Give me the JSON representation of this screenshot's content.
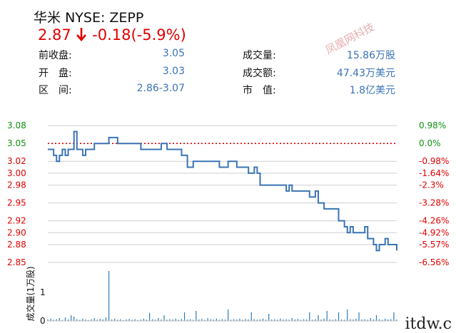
{
  "header": {
    "name": "华米",
    "ticker": "NYSE: ZEPP",
    "price": "2.87",
    "change": "-0.18",
    "change_pct": "(-5.9%)"
  },
  "stats": [
    {
      "label": "前收盘:",
      "value": "3.05"
    },
    {
      "label": "成交量:",
      "value": "15.86万股"
    },
    {
      "label": "开　盘:",
      "value": "3.03"
    },
    {
      "label": "成交额:",
      "value": "47.43万美元"
    },
    {
      "label": "区　间:",
      "value": "2.86-3.07"
    },
    {
      "label": "市　值:",
      "value": "1.8亿美元"
    }
  ],
  "watermark": "凤凰网科技",
  "corner_mark": "itdw.c",
  "colors": {
    "line": "#3a74b4",
    "up": "#109010",
    "down": "#e00000",
    "grid": "#cfcfcf",
    "reference": "#e00000",
    "volume": "#2e7bb8"
  },
  "chart_data": [
    {
      "type": "line",
      "title": "",
      "y_left_ticks": [
        {
          "label": "3.08",
          "value": 3.08,
          "color": "up"
        },
        {
          "label": "3.05",
          "value": 3.05,
          "color": "up"
        },
        {
          "label": "3.02",
          "value": 3.02,
          "color": "down"
        },
        {
          "label": "3.00",
          "value": 3.0,
          "color": "down"
        },
        {
          "label": "2.98",
          "value": 2.98,
          "color": "down"
        },
        {
          "label": "2.95",
          "value": 2.95,
          "color": "down"
        },
        {
          "label": "2.92",
          "value": 2.92,
          "color": "down"
        },
        {
          "label": "2.90",
          "value": 2.9,
          "color": "down"
        },
        {
          "label": "2.88",
          "value": 2.88,
          "color": "down"
        },
        {
          "label": "2.85",
          "value": 2.85,
          "color": "down"
        }
      ],
      "y_right_ticks": [
        {
          "label": "0.98%",
          "value": 3.08,
          "color": "up"
        },
        {
          "label": "0.0%",
          "value": 3.05,
          "color": "up"
        },
        {
          "label": "-0.98%",
          "value": 3.02,
          "color": "down"
        },
        {
          "label": "-1.64%",
          "value": 3.0,
          "color": "down"
        },
        {
          "label": "-2.3%",
          "value": 2.98,
          "color": "down"
        },
        {
          "label": "-3.28%",
          "value": 2.95,
          "color": "down"
        },
        {
          "label": "-4.26%",
          "value": 2.92,
          "color": "down"
        },
        {
          "label": "-4.92%",
          "value": 2.9,
          "color": "down"
        },
        {
          "label": "-5.57%",
          "value": 2.88,
          "color": "down"
        },
        {
          "label": "-6.56%",
          "value": 2.85,
          "color": "down"
        }
      ],
      "ylim": [
        2.85,
        3.085
      ],
      "reference_value": 3.05,
      "grid": true,
      "x": [
        0,
        1,
        2,
        3,
        4,
        5,
        6,
        7,
        8,
        9,
        10,
        11,
        12,
        13,
        14,
        15,
        16,
        17,
        18,
        19,
        20,
        21,
        22,
        23,
        24,
        25,
        26,
        27,
        28,
        29,
        30,
        31,
        32,
        33,
        34,
        35,
        36,
        37,
        38,
        39,
        40,
        41,
        42,
        43,
        44,
        45,
        46,
        47,
        48,
        49,
        50,
        51,
        52,
        53,
        54,
        55,
        56,
        57,
        58,
        59,
        60,
        61,
        62,
        63,
        64,
        65,
        66,
        67,
        68,
        69,
        70,
        71,
        72,
        73,
        74,
        75,
        76,
        77,
        78,
        79,
        80,
        81,
        82,
        83,
        84,
        85,
        86,
        87,
        88,
        89,
        90,
        91,
        92,
        93,
        94,
        95,
        96,
        97,
        98,
        99,
        100,
        101,
        102,
        103,
        104,
        105,
        106,
        107,
        108,
        109,
        110,
        111,
        112,
        113,
        114,
        115,
        116,
        117,
        118,
        119,
        120
      ],
      "values": [
        3.04,
        3.04,
        3.03,
        3.02,
        3.03,
        3.04,
        3.03,
        3.04,
        3.04,
        3.07,
        3.04,
        3.04,
        3.03,
        3.04,
        3.04,
        3.04,
        3.05,
        3.05,
        3.05,
        3.05,
        3.05,
        3.06,
        3.06,
        3.06,
        3.05,
        3.05,
        3.05,
        3.05,
        3.05,
        3.05,
        3.05,
        3.05,
        3.04,
        3.04,
        3.04,
        3.04,
        3.04,
        3.04,
        3.04,
        3.05,
        3.05,
        3.04,
        3.04,
        3.04,
        3.04,
        3.04,
        3.03,
        3.03,
        3.01,
        3.01,
        3.02,
        3.02,
        3.02,
        3.02,
        3.02,
        3.02,
        3.02,
        3.02,
        3.02,
        3.01,
        3.01,
        3.01,
        3.02,
        3.02,
        3.02,
        3.01,
        3.01,
        3.01,
        3.01,
        3.0,
        3.0,
        3.01,
        3.0,
        2.98,
        2.98,
        2.98,
        2.98,
        2.98,
        2.98,
        2.98,
        2.98,
        2.98,
        2.97,
        2.98,
        2.97,
        2.97,
        2.97,
        2.97,
        2.97,
        2.97,
        2.96,
        2.96,
        2.97,
        2.95,
        2.95,
        2.94,
        2.94,
        2.94,
        2.94,
        2.94,
        2.92,
        2.92,
        2.91,
        2.9,
        2.91,
        2.9,
        2.9,
        2.9,
        2.9,
        2.91,
        2.89,
        2.89,
        2.88,
        2.87,
        2.88,
        2.88,
        2.89,
        2.88,
        2.88,
        2.88,
        2.87
      ]
    },
    {
      "type": "bar",
      "ylabel": "成交量(1万股)",
      "y_ticks": [
        {
          "label": "1",
          "value": 1
        },
        {
          "label": "0",
          "value": 0
        }
      ],
      "ylim": [
        0,
        1.9
      ],
      "values": [
        0.05,
        0.08,
        0.04,
        0.06,
        0.1,
        0.03,
        0.12,
        0.05,
        0.2,
        0.15,
        0.06,
        0.04,
        0.08,
        0.05,
        0.03,
        0.06,
        0.1,
        0.04,
        0.07,
        0.05,
        0.12,
        1.75,
        0.05,
        0.08,
        0.04,
        0.06,
        0.03,
        0.05,
        0.07,
        0.04,
        0.06,
        0.03,
        0.05,
        0.08,
        0.04,
        0.28,
        0.06,
        0.04,
        0.1,
        0.05,
        0.2,
        0.04,
        0.06,
        0.05,
        0.08,
        0.04,
        0.07,
        0.3,
        0.05,
        0.06,
        0.04,
        0.35,
        0.05,
        0.07,
        0.04,
        0.1,
        0.06,
        0.05,
        0.08,
        0.04,
        0.06,
        0.05,
        0.4,
        0.04,
        0.06,
        0.05,
        0.08,
        0.04,
        0.07,
        0.05,
        0.3,
        0.06,
        0.04,
        0.05,
        0.08,
        0.04,
        0.25,
        0.05,
        0.06,
        0.04,
        0.08,
        0.05,
        0.06,
        0.04,
        0.1,
        0.05,
        0.07,
        0.04,
        0.06,
        0.05,
        0.3,
        0.04,
        0.06,
        0.2,
        0.05,
        0.08,
        0.35,
        0.05,
        0.04,
        0.06,
        0.3,
        0.05,
        0.04,
        0.4,
        0.06,
        0.05,
        0.08,
        0.3,
        0.05,
        0.06,
        0.04,
        0.1,
        0.05,
        0.2,
        0.06,
        0.04,
        0.08,
        0.05,
        0.06,
        0.3,
        0.05
      ]
    }
  ]
}
